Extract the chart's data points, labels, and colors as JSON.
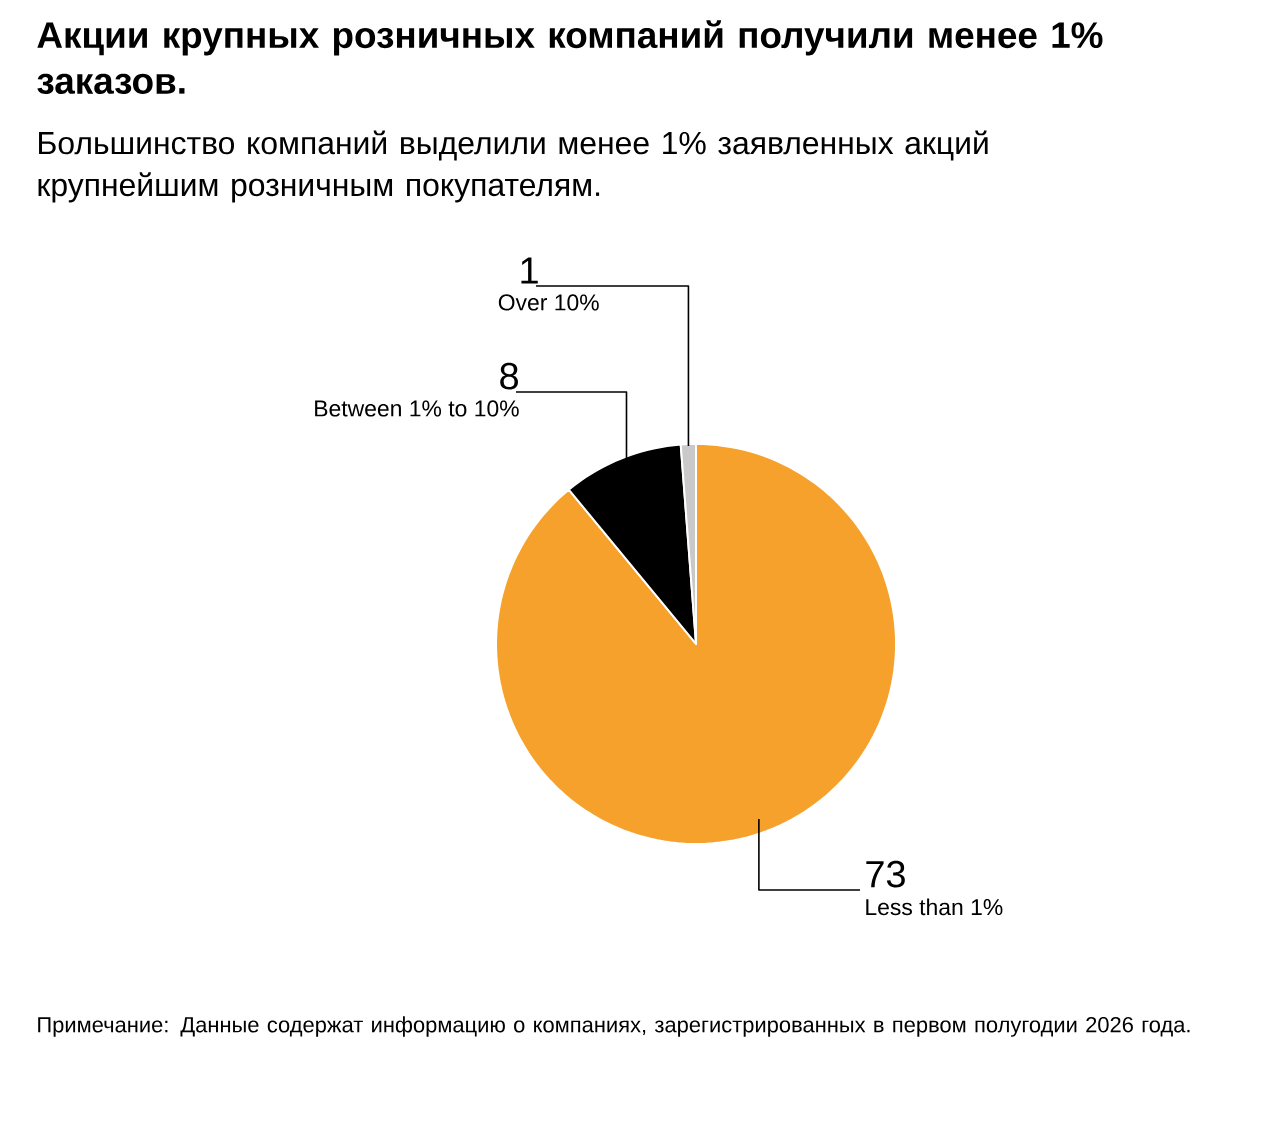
{
  "chart_data": {
    "type": "pie",
    "title": "Акции крупных розничных компаний получили менее 1% заказов.",
    "subtitle": "Большинство компаний выделили менее 1% заявленных акций крупнейшим розничным покупателям.",
    "categories": [
      "Less than 1%",
      "Between 1% to 10%",
      "Over 10%"
    ],
    "values": [
      73,
      8,
      1
    ],
    "colors": [
      "#f5a12b",
      "#000000",
      "#c9c9c9"
    ],
    "data_labels": true,
    "annotations": [
      "Примечание: Данные содержат информацию о компаниях, зарегистрированных в первом полугодии 2026 года."
    ]
  }
}
